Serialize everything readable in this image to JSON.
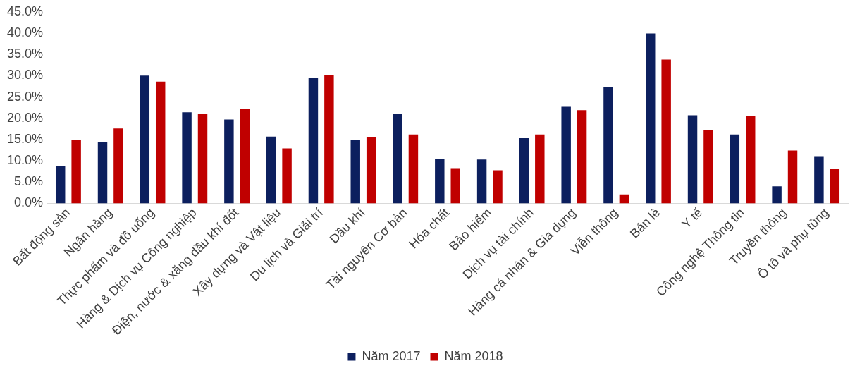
{
  "chart_data": {
    "type": "bar",
    "categories": [
      "Bất động sản",
      "Ngân hàng",
      "Thực phẩm và đồ uống",
      "Hàng & Dịch vụ Công nghiệp",
      "Điện, nước & xăng dầu khí đốt",
      "Xây dựng và Vật liệu",
      "Du lịch và Giải trí",
      "Dầu khí",
      "Tài nguyên Cơ bản",
      "Hóa chất",
      "Bảo hiểm",
      "Dịch vụ tài chính",
      "Hàng cá nhân & Gia dụng",
      "Viễn thông",
      "Bán lẻ",
      "Y tế",
      "Công nghệ Thông tin",
      "Truyền thông",
      "Ô tô và phụ tùng"
    ],
    "series": [
      {
        "name": "Năm 2017",
        "color": "#0c1f5e",
        "values": [
          8.8,
          14.4,
          30.0,
          21.4,
          19.7,
          15.7,
          29.4,
          14.9,
          21.0,
          10.5,
          10.3,
          15.3,
          22.7,
          27.3,
          39.9,
          20.7,
          16.2,
          4.0,
          11.1
        ]
      },
      {
        "name": "Năm 2018",
        "color": "#c00000",
        "values": [
          15.0,
          17.6,
          28.6,
          21.0,
          22.1,
          12.9,
          30.2,
          15.6,
          16.2,
          8.3,
          7.8,
          16.2,
          21.9,
          2.1,
          33.8,
          17.3,
          20.5,
          12.4,
          8.2
        ]
      }
    ],
    "ylim": [
      0,
      45
    ],
    "yticks": [
      {
        "value": 0,
        "label": "0.0%"
      },
      {
        "value": 5,
        "label": "5.0%"
      },
      {
        "value": 10,
        "label": "10.0%"
      },
      {
        "value": 15,
        "label": "15.0%"
      },
      {
        "value": 20,
        "label": "20.0%"
      },
      {
        "value": 25,
        "label": "25.0%"
      },
      {
        "value": 30,
        "label": "30.0%"
      },
      {
        "value": 35,
        "label": "35.0%"
      },
      {
        "value": 40,
        "label": "40.0%"
      },
      {
        "value": 45,
        "label": "45.0%"
      }
    ],
    "grid": false,
    "legend": "bottom"
  }
}
